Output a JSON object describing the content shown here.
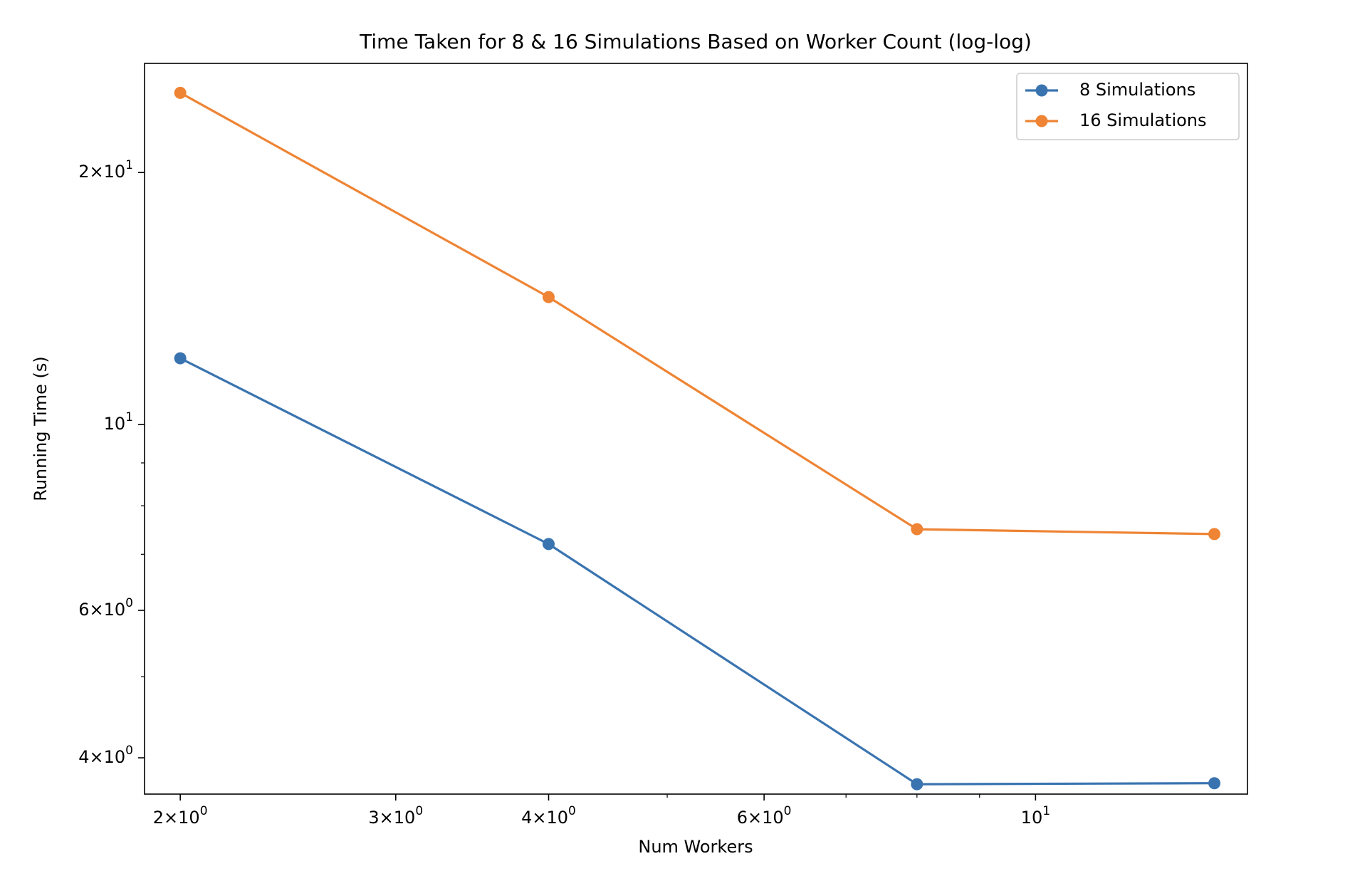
{
  "chart_data": {
    "type": "line",
    "title": "Time Taken for 8 & 16 Simulations Based on Worker Count (log-log)",
    "xlabel": "Num Workers",
    "ylabel": "Running Time (s)",
    "xscale": "log",
    "yscale": "log",
    "xlim": [
      1.87,
      14.9
    ],
    "ylim": [
      3.62,
      27.0
    ],
    "grid": false,
    "legend_position": "top-right",
    "x": [
      2,
      4,
      8,
      14
    ],
    "series": [
      {
        "name": "8 Simulations",
        "color": "#3a74b0",
        "values": [
          12.0,
          7.2,
          3.72,
          3.73
        ]
      },
      {
        "name": "16 Simulations",
        "color": "#ee8434",
        "values": [
          24.9,
          14.2,
          7.5,
          7.4
        ]
      }
    ],
    "x_ticks": [
      {
        "value": 2,
        "mant": "2",
        "exp": "0"
      },
      {
        "value": 3,
        "mant": "3",
        "exp": "0"
      },
      {
        "value": 4,
        "mant": "4",
        "exp": "0"
      },
      {
        "value": 6,
        "mant": "6",
        "exp": "0"
      },
      {
        "value": 10,
        "mant": "",
        "exp": "1"
      }
    ],
    "x_minor_ticks": [
      5,
      7,
      8,
      9
    ],
    "y_ticks": [
      {
        "value": 4,
        "mant": "4",
        "exp": "0"
      },
      {
        "value": 6,
        "mant": "6",
        "exp": "0"
      },
      {
        "value": 10,
        "mant": "",
        "exp": "1"
      },
      {
        "value": 20,
        "mant": "2",
        "exp": "1"
      }
    ],
    "y_minor_ticks": [
      5,
      7,
      8,
      9
    ]
  }
}
